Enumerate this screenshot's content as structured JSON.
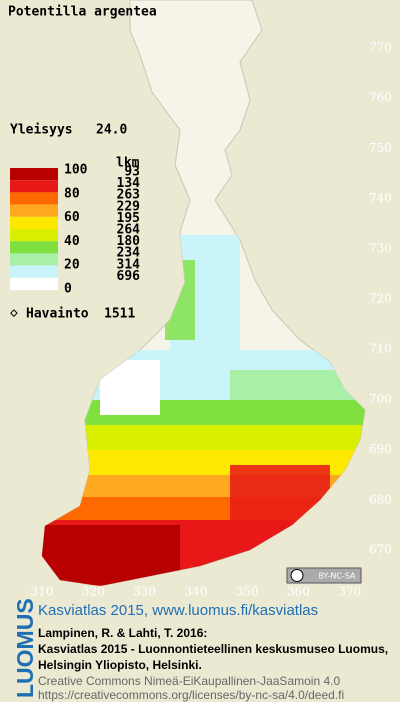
{
  "title": "Potentilla argentea",
  "frequency": {
    "label": "Yleisyys",
    "value": "24.0"
  },
  "legend": {
    "header": "lkm",
    "scale_labels": [
      100,
      80,
      60,
      40,
      20,
      0
    ],
    "bands": [
      {
        "color": "#b80000",
        "count": 93
      },
      {
        "color": "#e81818",
        "count": 134
      },
      {
        "color": "#ff6a00",
        "count": 263
      },
      {
        "color": "#ffa820",
        "count": 229
      },
      {
        "color": "#ffe800",
        "count": 195
      },
      {
        "color": "#d8f000",
        "count": 264
      },
      {
        "color": "#80e040",
        "count": 180
      },
      {
        "color": "#a8f0a8",
        "count": 234
      },
      {
        "color": "#c8f4fa",
        "count": 314
      },
      {
        "color": "#ffffff",
        "count": 696
      }
    ]
  },
  "observations": {
    "label": "Havainto",
    "count": 1511
  },
  "northing_labels": [
    770,
    760,
    750,
    740,
    730,
    720,
    710,
    700,
    690,
    680,
    670
  ],
  "easting_labels": [
    310,
    320,
    330,
    340,
    350,
    360,
    370
  ],
  "license_badge": "BY-NC-SA",
  "footer": {
    "brand": "LUOMUS",
    "link": "Kasviatlas 2015, www.luomus.fi/kasviatlas",
    "citation": [
      "Lampinen, R. & Lahti, T. 2016:",
      "Kasviatlas 2015 - Luonnontieteellinen keskusmuseo Luomus,",
      "Helsingin Yliopisto, Helsinki."
    ],
    "license": [
      "Creative Commons Nimeä-EiKaupallinen-JaaSamoin 4.0",
      "https://creativecommons.org/licenses/by-nc-sa/4.0/deed.fi"
    ]
  }
}
